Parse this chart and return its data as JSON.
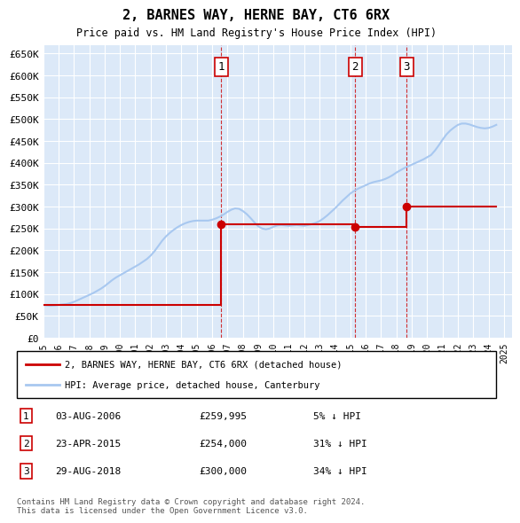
{
  "title": "2, BARNES WAY, HERNE BAY, CT6 6RX",
  "subtitle": "Price paid vs. HM Land Registry's House Price Index (HPI)",
  "xlabel": "",
  "ylabel": "",
  "ylim": [
    0,
    670000
  ],
  "yticks": [
    0,
    50000,
    100000,
    150000,
    200000,
    250000,
    300000,
    350000,
    400000,
    450000,
    500000,
    550000,
    600000,
    650000
  ],
  "ytick_labels": [
    "£0",
    "£50K",
    "£100K",
    "£150K",
    "£200K",
    "£250K",
    "£300K",
    "£350K",
    "£400K",
    "£450K",
    "£500K",
    "£550K",
    "£600K",
    "£650K"
  ],
  "xlim_start": 1995.0,
  "xlim_end": 2025.5,
  "background_color": "#dce9f8",
  "plot_bg_color": "#dce9f8",
  "grid_color": "#ffffff",
  "hpi_color": "#a8c8f0",
  "price_color": "#cc0000",
  "marker_color": "#cc0000",
  "transactions": [
    {
      "id": 1,
      "year": 2006.58,
      "price": 259995,
      "date": "03-AUG-2006",
      "pct": "5%",
      "dir": "↓"
    },
    {
      "id": 2,
      "year": 2015.31,
      "price": 254000,
      "date": "23-APR-2015",
      "pct": "31%",
      "dir": "↓"
    },
    {
      "id": 3,
      "year": 2018.66,
      "price": 300000,
      "date": "29-AUG-2018",
      "pct": "34%",
      "dir": "↓"
    }
  ],
  "legend_line1": "2, BARNES WAY, HERNE BAY, CT6 6RX (detached house)",
  "legend_line2": "HPI: Average price, detached house, Canterbury",
  "footnote1": "Contains HM Land Registry data © Crown copyright and database right 2024.",
  "footnote2": "This data is licensed under the Open Government Licence v3.0.",
  "hpi_data_x": [
    1995.0,
    1995.25,
    1995.5,
    1995.75,
    1996.0,
    1996.25,
    1996.5,
    1996.75,
    1997.0,
    1997.25,
    1997.5,
    1997.75,
    1998.0,
    1998.25,
    1998.5,
    1998.75,
    1999.0,
    1999.25,
    1999.5,
    1999.75,
    2000.0,
    2000.25,
    2000.5,
    2000.75,
    2001.0,
    2001.25,
    2001.5,
    2001.75,
    2002.0,
    2002.25,
    2002.5,
    2002.75,
    2003.0,
    2003.25,
    2003.5,
    2003.75,
    2004.0,
    2004.25,
    2004.5,
    2004.75,
    2005.0,
    2005.25,
    2005.5,
    2005.75,
    2006.0,
    2006.25,
    2006.5,
    2006.75,
    2007.0,
    2007.25,
    2007.5,
    2007.75,
    2008.0,
    2008.25,
    2008.5,
    2008.75,
    2009.0,
    2009.25,
    2009.5,
    2009.75,
    2010.0,
    2010.25,
    2010.5,
    2010.75,
    2011.0,
    2011.25,
    2011.5,
    2011.75,
    2012.0,
    2012.25,
    2012.5,
    2012.75,
    2013.0,
    2013.25,
    2013.5,
    2013.75,
    2014.0,
    2014.25,
    2014.5,
    2014.75,
    2015.0,
    2015.25,
    2015.5,
    2015.75,
    2016.0,
    2016.25,
    2016.5,
    2016.75,
    2017.0,
    2017.25,
    2017.5,
    2017.75,
    2018.0,
    2018.25,
    2018.5,
    2018.75,
    2019.0,
    2019.25,
    2019.5,
    2019.75,
    2020.0,
    2020.25,
    2020.5,
    2020.75,
    2021.0,
    2021.25,
    2021.5,
    2021.75,
    2022.0,
    2022.25,
    2022.5,
    2022.75,
    2023.0,
    2023.25,
    2023.5,
    2023.75,
    2024.0,
    2024.25,
    2024.5
  ],
  "hpi_data_y": [
    75000,
    74000,
    73500,
    74000,
    75000,
    76000,
    77000,
    79000,
    82000,
    86000,
    90000,
    94000,
    98000,
    102000,
    107000,
    112000,
    118000,
    125000,
    132000,
    138000,
    143000,
    148000,
    153000,
    158000,
    163000,
    168000,
    174000,
    180000,
    188000,
    198000,
    210000,
    222000,
    232000,
    240000,
    247000,
    253000,
    258000,
    262000,
    265000,
    267000,
    268000,
    268000,
    268000,
    268000,
    270000,
    273000,
    277000,
    282000,
    288000,
    293000,
    296000,
    295000,
    290000,
    283000,
    274000,
    264000,
    255000,
    250000,
    248000,
    250000,
    254000,
    257000,
    258000,
    257000,
    256000,
    257000,
    258000,
    257000,
    256000,
    258000,
    260000,
    263000,
    267000,
    273000,
    280000,
    288000,
    296000,
    305000,
    314000,
    322000,
    330000,
    336000,
    341000,
    345000,
    349000,
    353000,
    356000,
    358000,
    360000,
    363000,
    367000,
    372000,
    378000,
    383000,
    388000,
    392000,
    396000,
    400000,
    404000,
    408000,
    413000,
    418000,
    428000,
    440000,
    453000,
    465000,
    474000,
    481000,
    487000,
    490000,
    490000,
    488000,
    485000,
    482000,
    480000,
    479000,
    480000,
    483000,
    487000
  ],
  "price_data_x": [
    1995.0,
    2006.58,
    2006.58,
    2015.31,
    2015.31,
    2018.66,
    2018.66,
    2024.5
  ],
  "price_data_y": [
    75000,
    75000,
    259995,
    259995,
    254000,
    254000,
    300000,
    300000
  ]
}
